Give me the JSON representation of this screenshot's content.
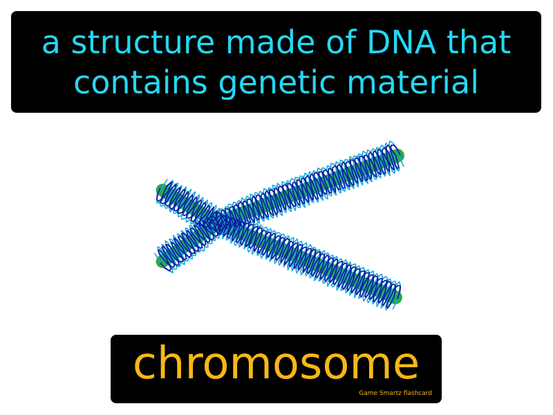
{
  "definition": {
    "line1": "a structure made of DNA that",
    "line2": "contains genetic material"
  },
  "term": "chromosome",
  "brand": "Game Smartz flashcard",
  "colors": {
    "definition_text": "#25d8f3",
    "term_text": "#f7b718",
    "box_background": "#000000",
    "chromatid_fill": "#2aa84a",
    "coil_dark": "#0d1fa0",
    "coil_light": "#19a8d6"
  },
  "illustration": {
    "icon": "chromosome-icon"
  }
}
